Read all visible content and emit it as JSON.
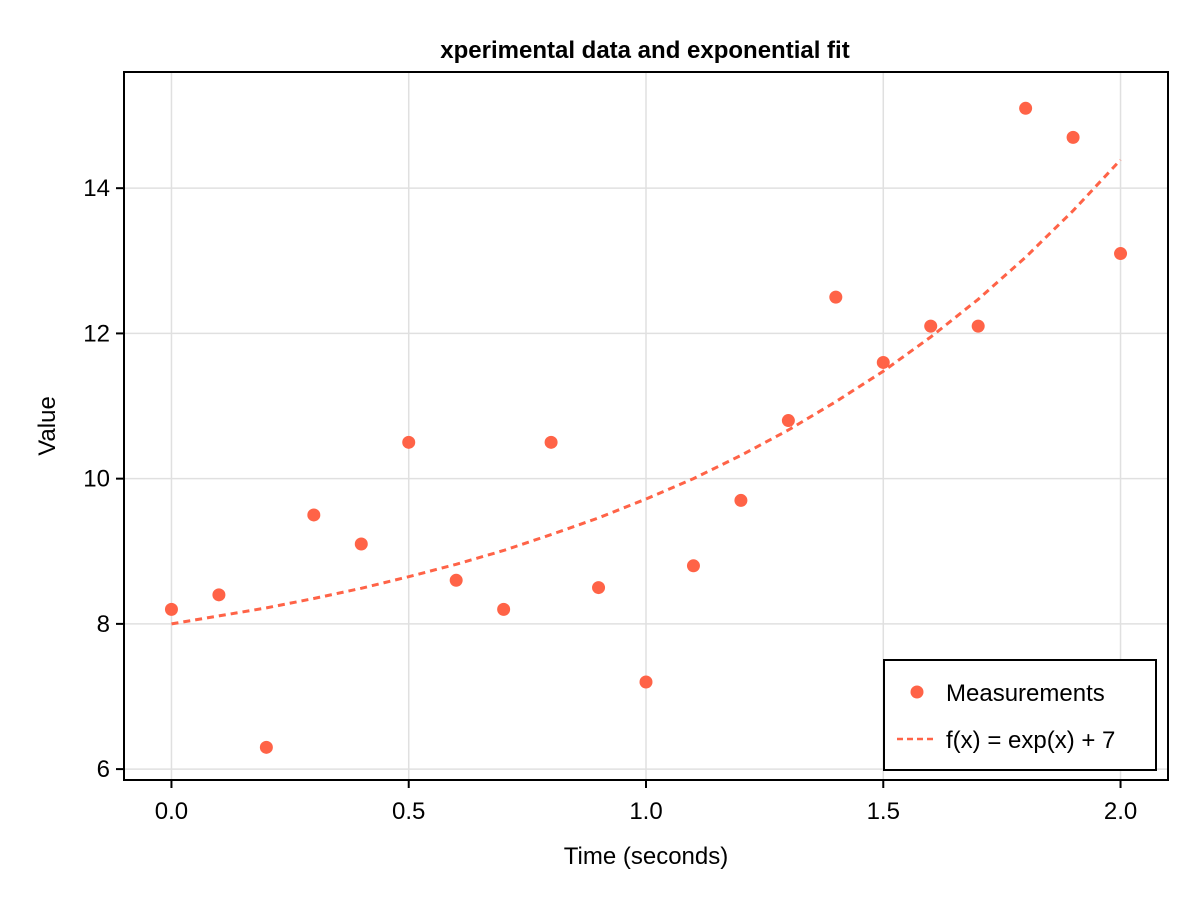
{
  "chart_data": {
    "type": "scatter",
    "title": "xperimental data and exponential fit",
    "xlabel": "Time (seconds)",
    "ylabel": "Value",
    "xlim": [
      -0.1,
      2.1
    ],
    "ylim": [
      5.85,
      15.6
    ],
    "xticks": [
      0.0,
      0.5,
      1.0,
      1.5,
      2.0
    ],
    "xtick_labels": [
      "0.0",
      "0.5",
      "1.0",
      "1.5",
      "2.0"
    ],
    "yticks": [
      6,
      8,
      10,
      12,
      14
    ],
    "ytick_labels": [
      "6",
      "8",
      "10",
      "12",
      "14"
    ],
    "grid": true,
    "legend_position": "bottom-right",
    "series": [
      {
        "name": "Measurements",
        "kind": "scatter",
        "color": "#ff6347",
        "x": [
          0.0,
          0.1,
          0.2,
          0.3,
          0.4,
          0.5,
          0.6,
          0.7,
          0.8,
          0.9,
          1.0,
          1.1,
          1.2,
          1.3,
          1.4,
          1.5,
          1.6,
          1.7,
          1.8,
          1.9,
          2.0
        ],
        "y": [
          8.2,
          8.4,
          6.3,
          9.5,
          9.1,
          10.5,
          8.6,
          8.2,
          10.5,
          8.5,
          7.2,
          8.8,
          9.7,
          10.8,
          12.5,
          11.6,
          12.1,
          12.1,
          15.1,
          14.7,
          13.1
        ]
      },
      {
        "name": "f(x) = exp(x) + 7",
        "kind": "line",
        "style": "dashed",
        "color": "#ff6347",
        "x": [
          0.0,
          0.1,
          0.2,
          0.3,
          0.4,
          0.5,
          0.6,
          0.7,
          0.8,
          0.9,
          1.0,
          1.1,
          1.2,
          1.3,
          1.4,
          1.5,
          1.6,
          1.7,
          1.8,
          1.9,
          2.0
        ],
        "y": [
          8.0,
          8.11,
          8.22,
          8.35,
          8.49,
          8.65,
          8.82,
          9.01,
          9.23,
          9.46,
          9.72,
          10.0,
          10.32,
          10.67,
          11.06,
          11.48,
          11.95,
          12.47,
          13.05,
          13.69,
          14.39
        ]
      }
    ]
  }
}
